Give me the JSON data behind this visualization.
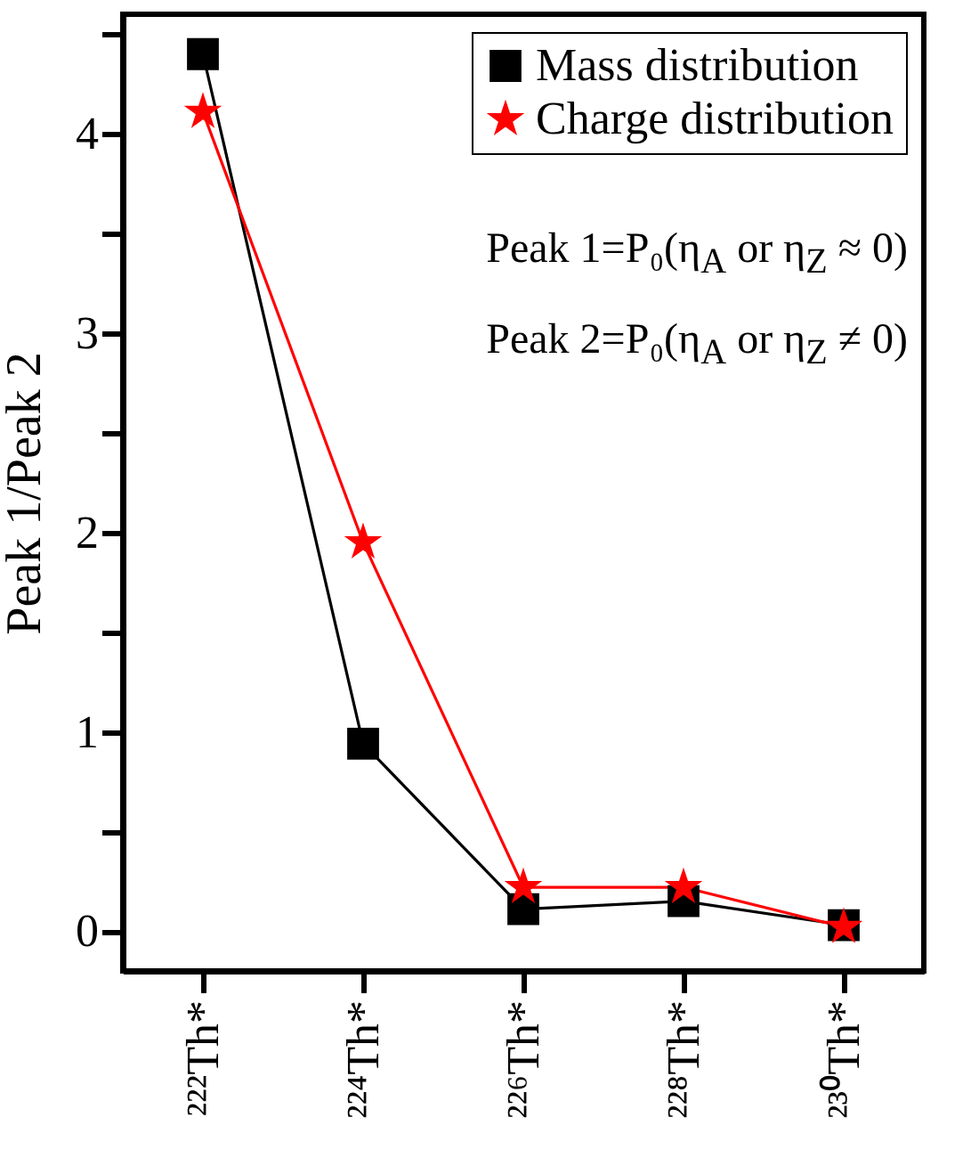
{
  "chart_data": {
    "type": "line",
    "ylabel": "Peak 1/Peak 2",
    "categories": [
      "²²²Th*",
      "²²⁴Th*",
      "²²⁶Th*",
      "²²⁸Th*",
      "²³⁰Th*"
    ],
    "series": [
      {
        "name": "Mass distribution",
        "color": "#000000",
        "marker": "square",
        "values": [
          4.4,
          0.94,
          0.11,
          0.15,
          0.03
        ]
      },
      {
        "name": "Charge distribution",
        "color": "#ff0000",
        "marker": "star",
        "values": [
          4.11,
          1.95,
          0.22,
          0.22,
          0.02
        ]
      }
    ],
    "ylim": [
      -0.2,
      4.6
    ],
    "yticks": [
      0,
      {
        "value": 0.5,
        "label": null
      },
      1,
      {
        "value": 1.5,
        "label": null
      },
      2,
      {
        "value": 2.5,
        "label": null
      },
      3,
      {
        "value": 3.5,
        "label": null
      },
      4,
      {
        "value": 4.5,
        "label": null
      }
    ],
    "grid": false,
    "legend": "top right",
    "line_style": "solid",
    "annotations": [
      "Peak 1=P₀(η$_{A}$ or η$_{Z}$ ≈ 0)",
      "Peak 2=P₀(η$_{A}$ or η$_{Z}$ ≠ 0)"
    ]
  }
}
